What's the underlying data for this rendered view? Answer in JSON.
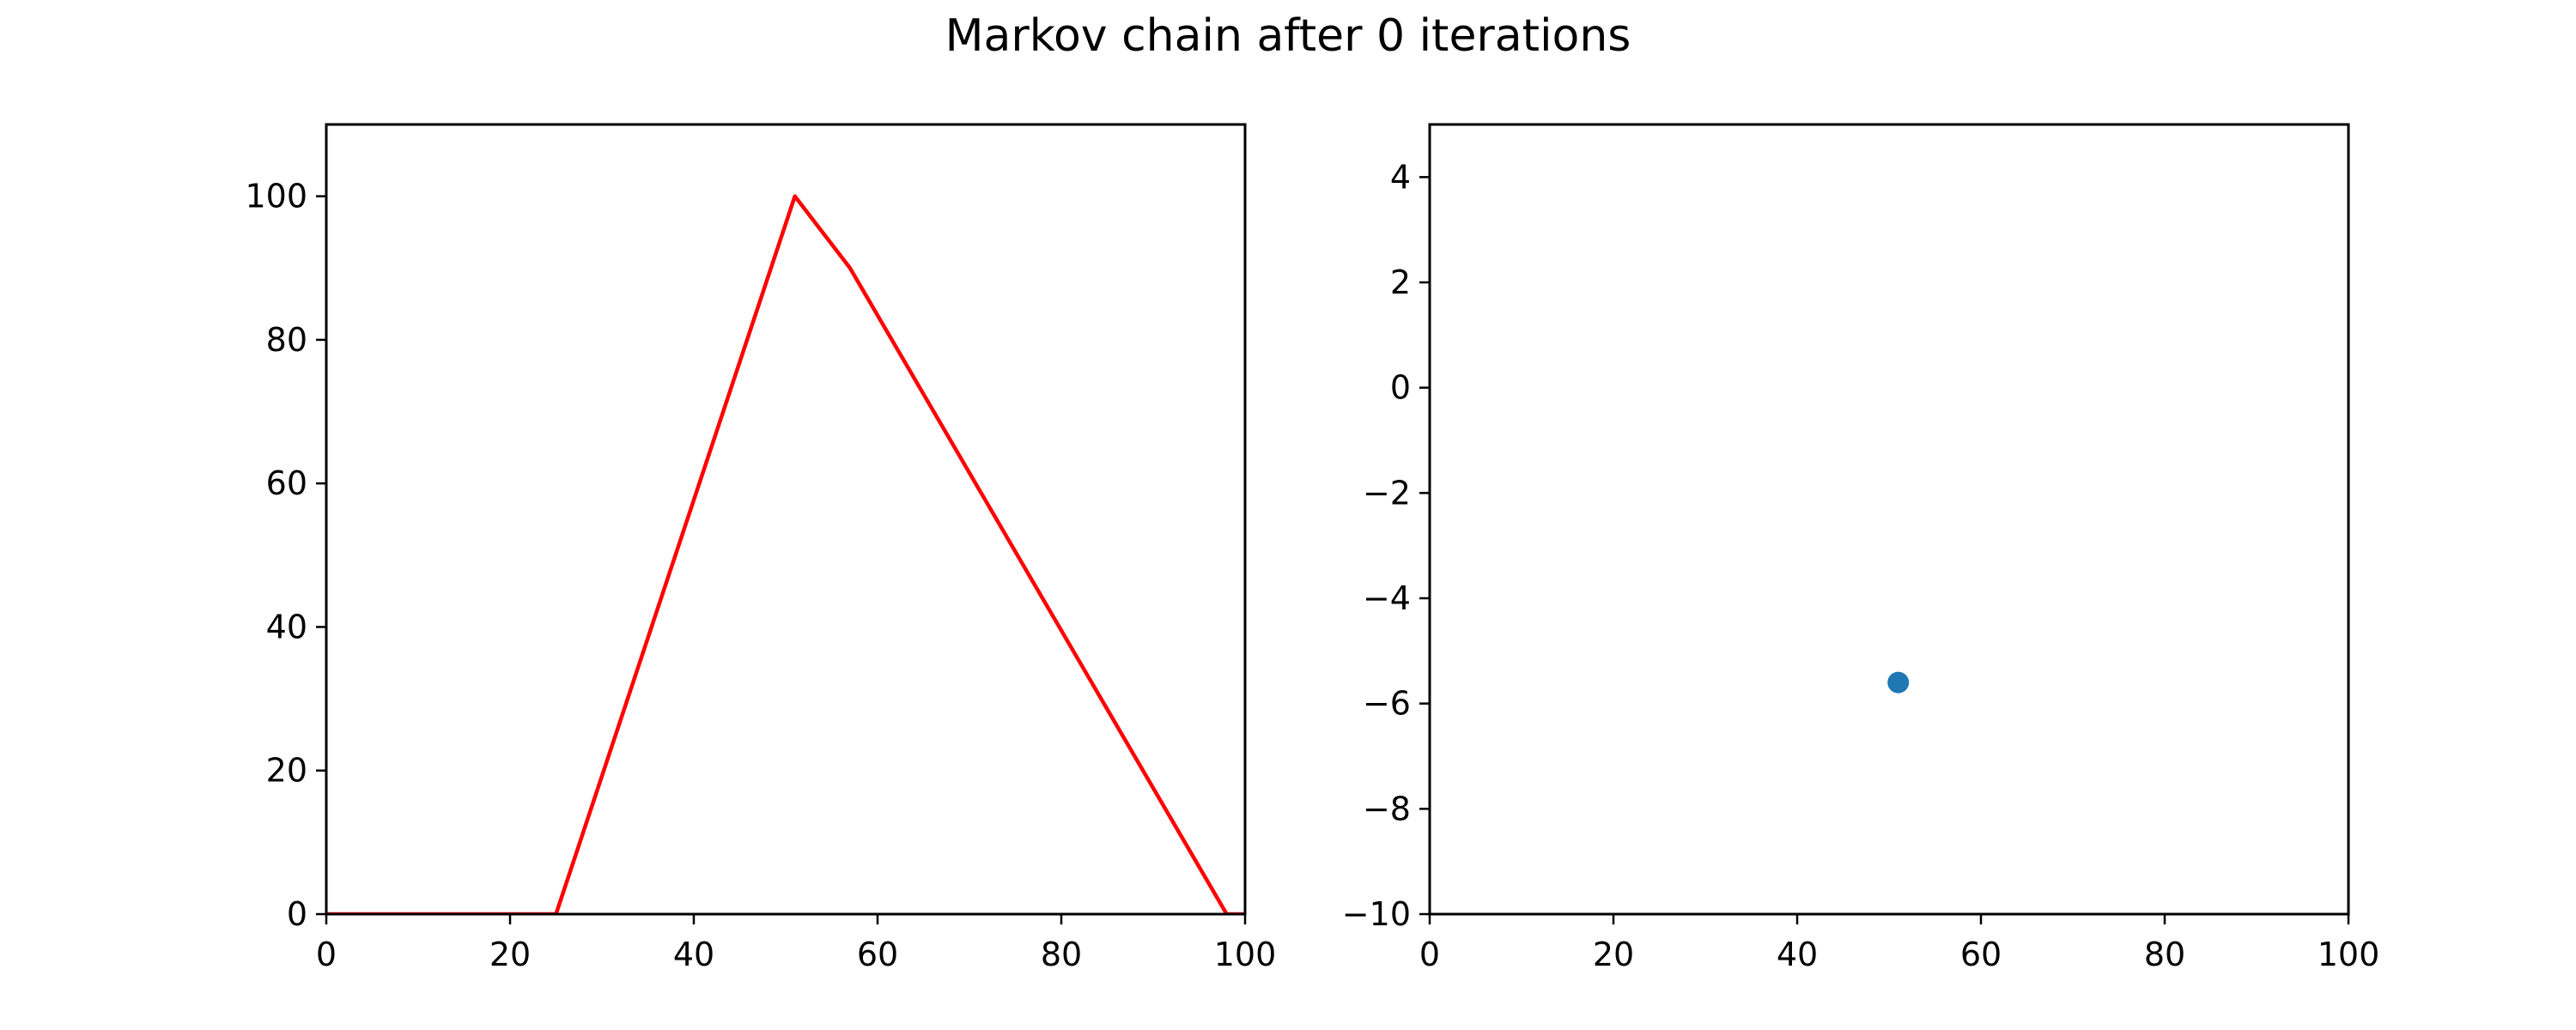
{
  "figure": {
    "title": "Markov chain after 0 iterations"
  },
  "colors": {
    "line": "#ff0000",
    "point": "#1f77b4",
    "axes": "#000000",
    "face": "#ffffff"
  },
  "chart_data": [
    {
      "type": "line",
      "title": "",
      "xlabel": "",
      "ylabel": "",
      "xlim": [
        0,
        100
      ],
      "ylim": [
        0,
        110
      ],
      "xticks": [
        0,
        20,
        40,
        60,
        80,
        100
      ],
      "yticks": [
        0,
        20,
        40,
        60,
        80,
        100
      ],
      "grid": false,
      "series": [
        {
          "x": [
            0,
            25,
            51,
            57,
            98,
            100
          ],
          "y": [
            0,
            0,
            100,
            90,
            0,
            0
          ]
        }
      ]
    },
    {
      "type": "scatter",
      "title": "",
      "xlabel": "",
      "ylabel": "",
      "xlim": [
        0,
        100
      ],
      "ylim": [
        -10,
        5
      ],
      "xticks": [
        0,
        20,
        40,
        60,
        80,
        100
      ],
      "yticks": [
        -10,
        -8,
        -6,
        -4,
        -2,
        0,
        2,
        4
      ],
      "ytick_labels": [
        "−10",
        "−8",
        "−6",
        "−4",
        "−2",
        "0",
        "2",
        "4"
      ],
      "grid": false,
      "series": [
        {
          "x": [
            51
          ],
          "y": [
            -5.6
          ]
        }
      ]
    }
  ]
}
